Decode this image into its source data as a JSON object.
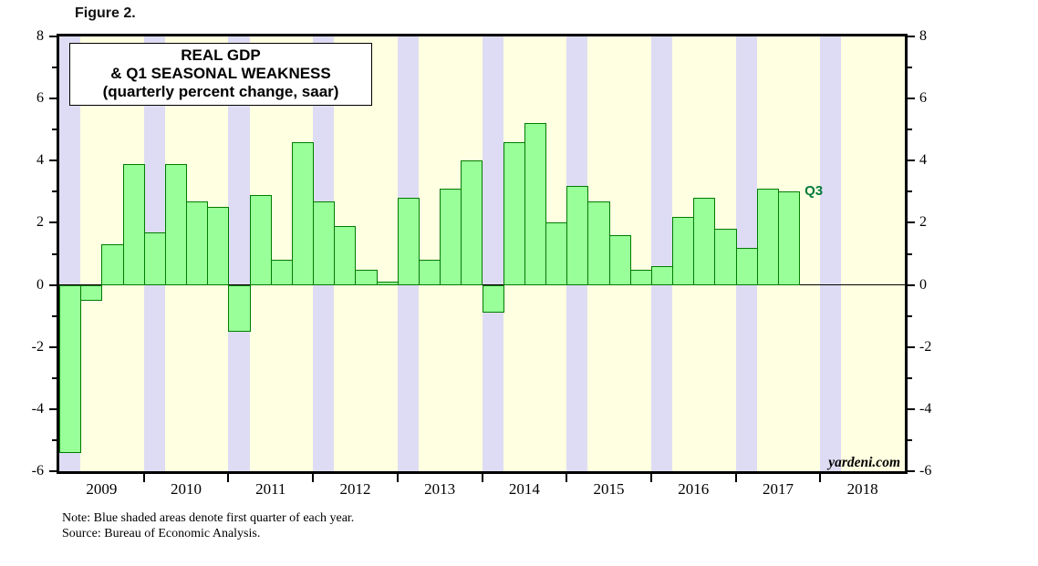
{
  "figure_label": "Figure 2.",
  "chart_data": {
    "type": "bar",
    "title_lines": [
      "REAL GDP",
      "& Q1 SEASONAL WEAKNESS",
      "(quarterly percent change, saar)"
    ],
    "quarters": [
      "2009Q1",
      "2009Q2",
      "2009Q3",
      "2009Q4",
      "2010Q1",
      "2010Q2",
      "2010Q3",
      "2010Q4",
      "2011Q1",
      "2011Q2",
      "2011Q3",
      "2011Q4",
      "2012Q1",
      "2012Q2",
      "2012Q3",
      "2012Q4",
      "2013Q1",
      "2013Q2",
      "2013Q3",
      "2013Q4",
      "2014Q1",
      "2014Q2",
      "2014Q3",
      "2014Q4",
      "2015Q1",
      "2015Q2",
      "2015Q3",
      "2015Q4",
      "2016Q1",
      "2016Q2",
      "2016Q3",
      "2016Q4",
      "2017Q1",
      "2017Q2",
      "2017Q3"
    ],
    "values": [
      -5.4,
      -0.5,
      1.3,
      3.9,
      1.7,
      3.9,
      2.7,
      2.5,
      -1.5,
      2.9,
      0.8,
      4.6,
      2.7,
      1.9,
      0.5,
      0.1,
      2.8,
      0.8,
      3.1,
      4.0,
      -0.9,
      4.6,
      5.2,
      2.0,
      3.2,
      2.7,
      1.6,
      0.5,
      0.6,
      2.2,
      2.8,
      1.8,
      1.2,
      3.1,
      3.0
    ],
    "last_bar_label": "Q3",
    "x_year_labels": [
      "2009",
      "2010",
      "2011",
      "2012",
      "2013",
      "2014",
      "2015",
      "2016",
      "2017",
      "2018"
    ],
    "x_total_quarters": 40,
    "ylim": [
      -6,
      8
    ],
    "ytick_labels": [
      "8",
      "6",
      "4",
      "2",
      "0",
      "-2",
      "-4",
      "-6"
    ],
    "ytick_major_step": 2,
    "ytick_minor_step": 1,
    "grid": "off",
    "legend": "none",
    "shaded_quarters": "first quarter of each year",
    "branding": "yardeni.com",
    "colors": {
      "plot_bg": "#ffffe1",
      "q1_band": "#dedcf4",
      "bar_fill": "#99ff99",
      "bar_border": "#007c00",
      "annotation_text": "#007a3c",
      "axis": "#000000"
    }
  },
  "footnotes": {
    "note": "Note: Blue shaded areas denote first quarter of each year.",
    "source": "Source: Bureau of Economic Analysis."
  }
}
